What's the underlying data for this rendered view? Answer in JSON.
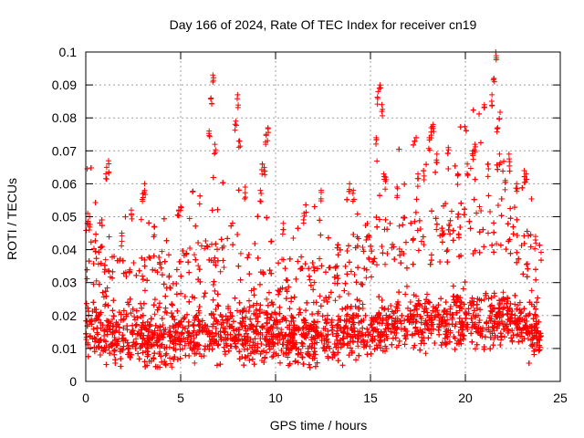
{
  "chart_data": {
    "type": "scatter",
    "title": "Day 166 of 2024, Rate Of TEC Index for receiver cn19",
    "xlabel": "GPS time / hours",
    "ylabel": "ROTI / TECUs",
    "xlim": [
      0,
      25
    ],
    "ylim": [
      0,
      0.1
    ],
    "x_ticks": [
      0,
      5,
      10,
      15,
      20,
      25
    ],
    "x_tick_labels": [
      "0",
      "5",
      "10",
      "15",
      "20",
      "25"
    ],
    "y_ticks": [
      0,
      0.01,
      0.02,
      0.03,
      0.04,
      0.05,
      0.06,
      0.07,
      0.08,
      0.09,
      0.1
    ],
    "y_tick_labels": [
      "0",
      "0.01",
      "0.02",
      "0.03",
      "0.04",
      "0.05",
      "0.06",
      "0.07",
      "0.08",
      "0.09",
      "0.1"
    ],
    "grid": true,
    "marker": "+",
    "colors": {
      "series": "#ff0000",
      "grid": "#a0a0a0",
      "axis": "#000000"
    },
    "series": [
      {
        "name": "ROTI",
        "x_range": [
          0,
          24
        ],
        "points": [
          [
            6.7,
            0.093
          ],
          [
            6.6,
            0.086
          ],
          [
            8.0,
            0.087
          ],
          [
            21.6,
            0.1
          ],
          [
            21.5,
            0.092
          ],
          [
            21.4,
            0.087
          ],
          [
            15.5,
            0.09
          ],
          [
            15.4,
            0.088
          ],
          [
            15.6,
            0.084
          ],
          [
            18.3,
            0.078
          ],
          [
            18.2,
            0.077
          ],
          [
            21.0,
            0.084
          ],
          [
            7.9,
            0.079
          ],
          [
            8.1,
            0.073
          ],
          [
            6.5,
            0.076
          ],
          [
            6.8,
            0.072
          ],
          [
            9.6,
            0.077
          ],
          [
            9.5,
            0.075
          ],
          [
            15.3,
            0.074
          ],
          [
            18.1,
            0.074
          ],
          [
            19.1,
            0.071
          ],
          [
            20.5,
            0.072
          ],
          [
            21.7,
            0.077
          ],
          [
            22.3,
            0.069
          ],
          [
            1.2,
            0.067
          ],
          [
            1.1,
            0.065
          ],
          [
            3.1,
            0.06
          ],
          [
            3.0,
            0.057
          ],
          [
            4.9,
            0.052
          ],
          [
            5.0,
            0.053
          ],
          [
            0.1,
            0.051
          ],
          [
            0.2,
            0.05
          ],
          [
            9.3,
            0.066
          ],
          [
            9.4,
            0.065
          ],
          [
            9.2,
            0.058
          ],
          [
            8.4,
            0.059
          ],
          [
            13.9,
            0.06
          ],
          [
            14.1,
            0.058
          ],
          [
            15.7,
            0.063
          ],
          [
            15.8,
            0.062
          ],
          [
            16.4,
            0.059
          ],
          [
            17.5,
            0.063
          ],
          [
            17.8,
            0.064
          ],
          [
            18.5,
            0.069
          ],
          [
            19.6,
            0.063
          ],
          [
            20.1,
            0.066
          ],
          [
            20.4,
            0.07
          ],
          [
            21.2,
            0.066
          ],
          [
            21.8,
            0.069
          ],
          [
            22.1,
            0.061
          ],
          [
            22.7,
            0.06
          ],
          [
            23.1,
            0.064
          ],
          [
            23.2,
            0.063
          ],
          [
            12.4,
            0.058
          ],
          [
            11.5,
            0.051
          ],
          [
            10.4,
            0.048
          ],
          [
            2.4,
            0.052
          ],
          [
            3.6,
            0.047
          ],
          [
            1.9,
            0.045
          ],
          [
            23.7,
            0.044
          ]
        ]
      }
    ]
  }
}
